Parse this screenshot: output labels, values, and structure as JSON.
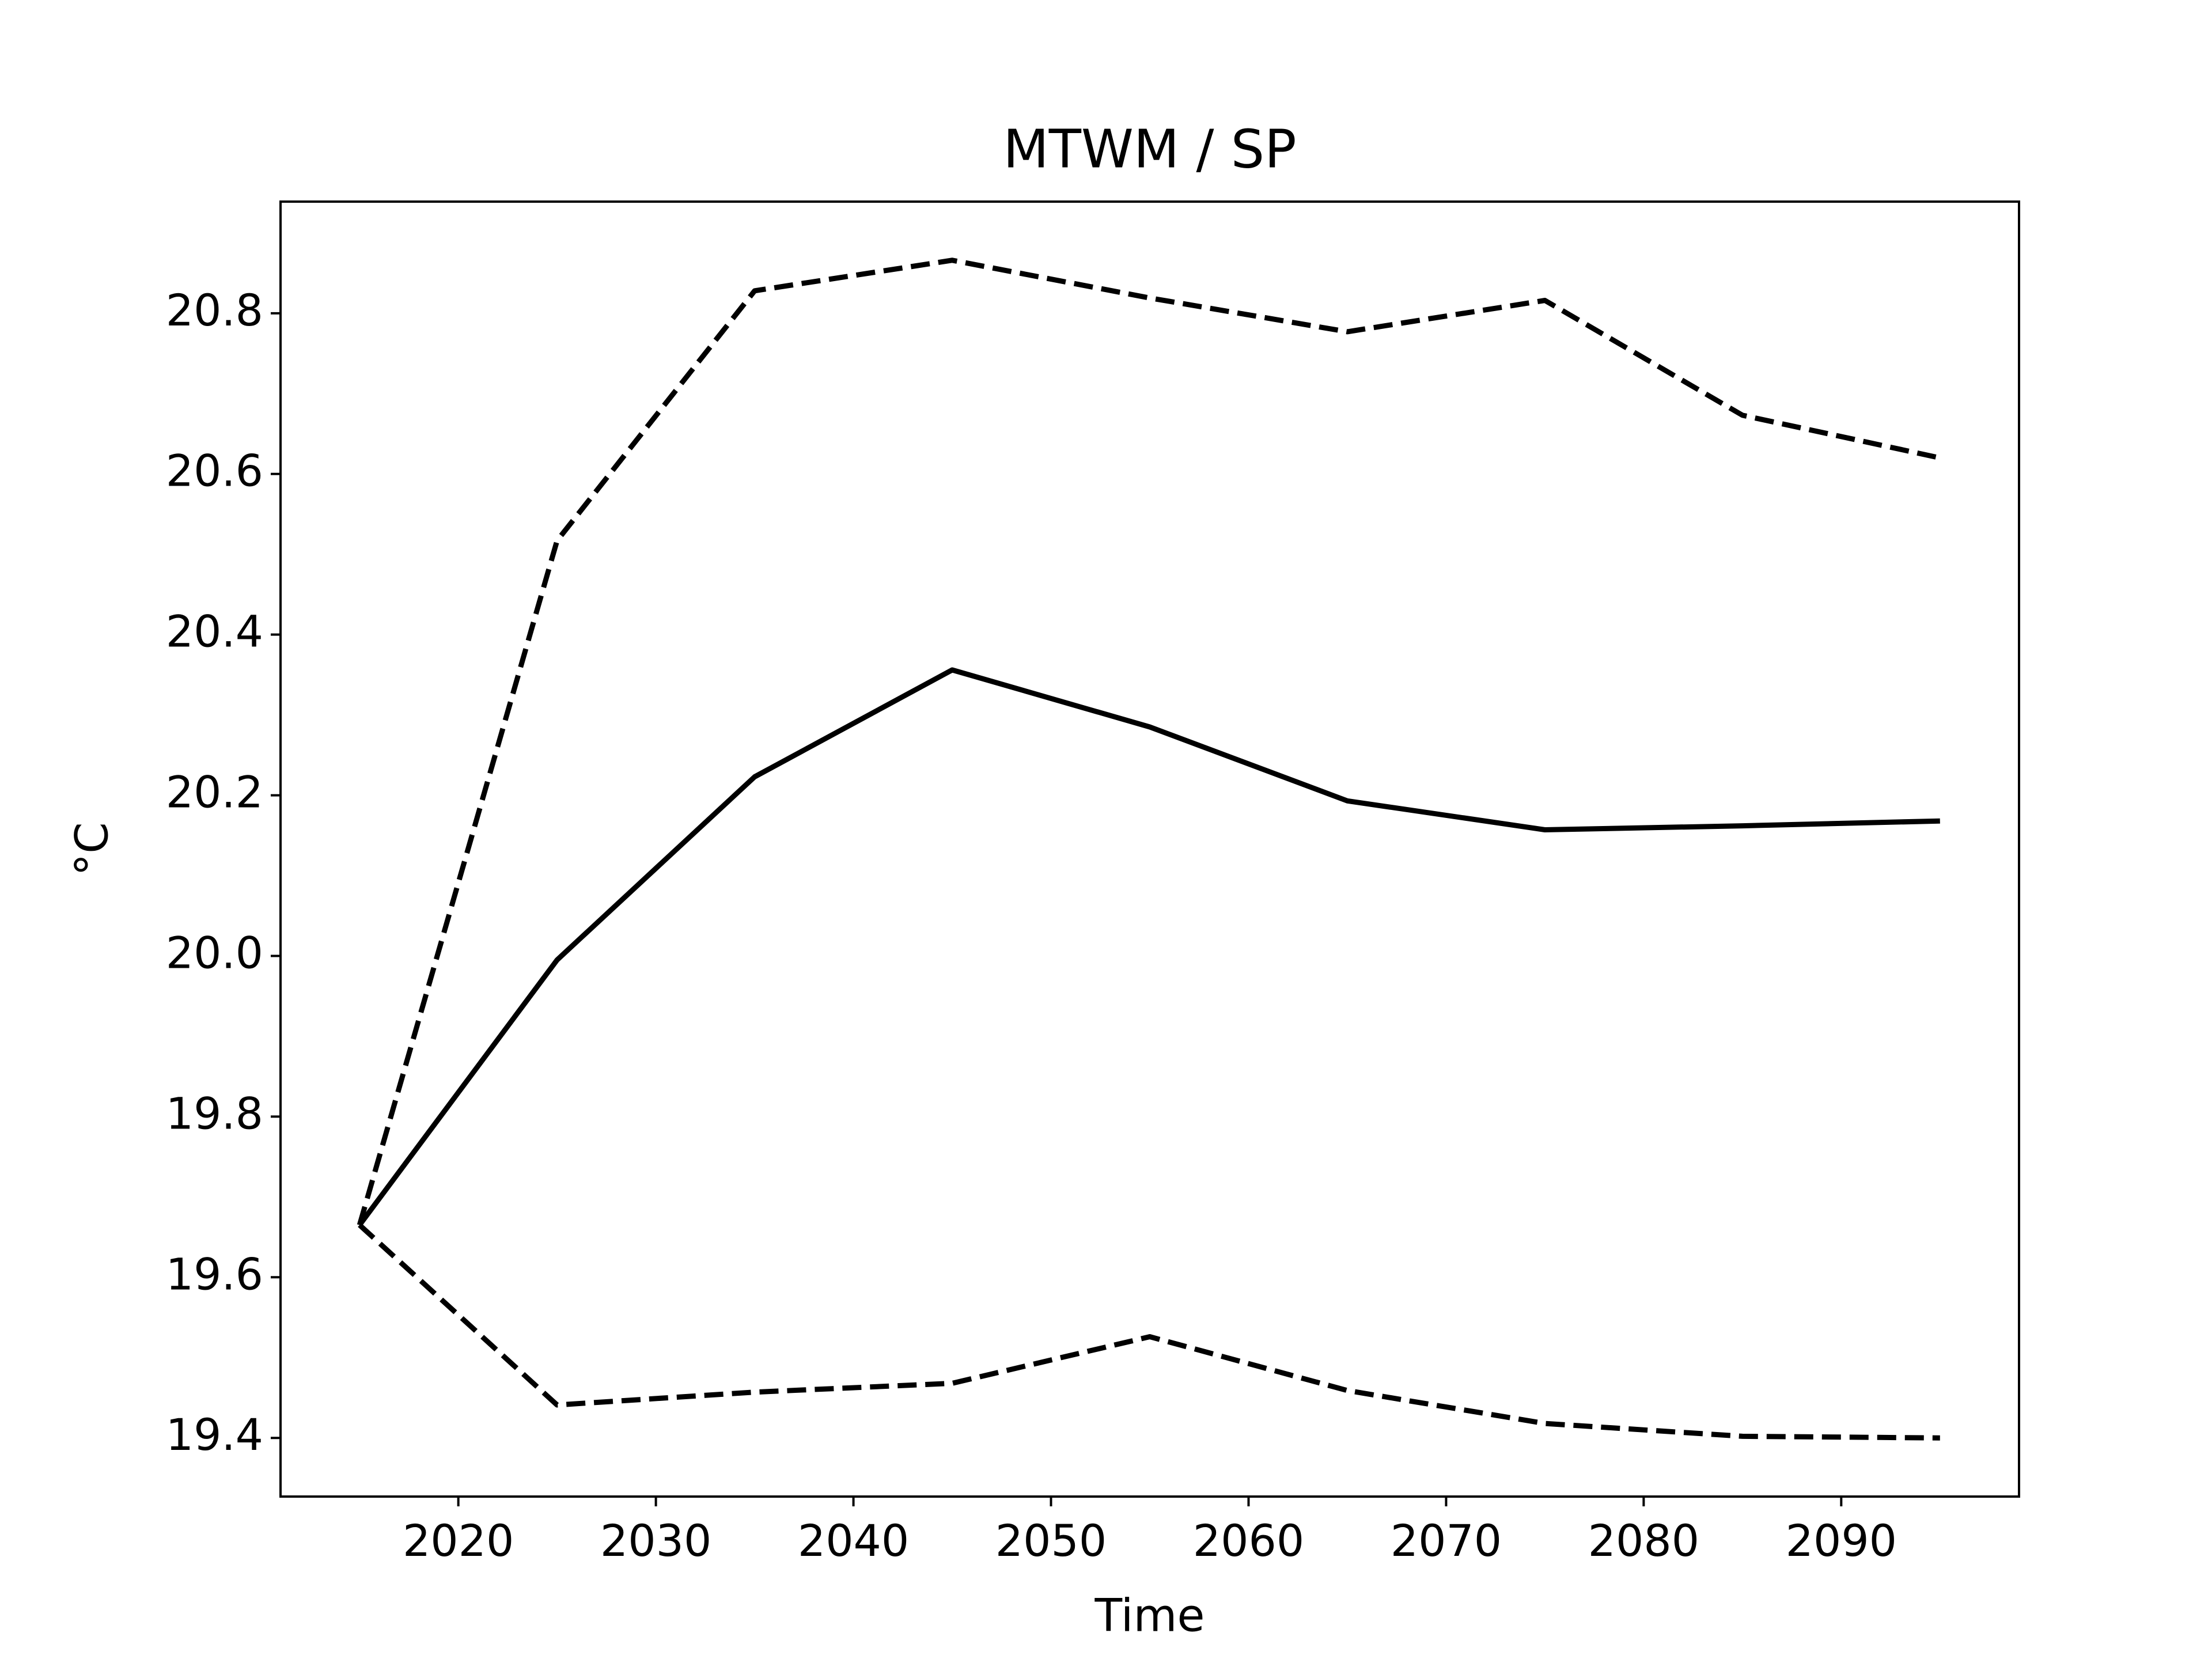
{
  "chart_data": {
    "type": "line",
    "title": "MTWM / SP",
    "x_label": "Time",
    "y_label": "°C",
    "x": [
      2015,
      2025,
      2035,
      2045,
      2055,
      2065,
      2075,
      2085,
      2095
    ],
    "series": [
      {
        "color": "#000000",
        "dash": true,
        "values": [
          19.665,
          20.517,
          20.828,
          20.866,
          20.819,
          20.777,
          20.816,
          20.673,
          20.62
        ]
      },
      {
        "color": "#000000",
        "dash": false,
        "values": [
          19.665,
          19.995,
          20.223,
          20.356,
          20.285,
          20.193,
          20.157,
          20.162,
          20.168
        ]
      },
      {
        "color": "#000000",
        "dash": true,
        "values": [
          19.665,
          19.441,
          19.457,
          19.468,
          19.526,
          19.459,
          19.418,
          19.402,
          19.4
        ]
      }
    ],
    "xlim": [
      2011,
      2099
    ],
    "ylim": [
      19.327,
      20.939
    ],
    "xticks": [
      2020,
      2030,
      2040,
      2050,
      2060,
      2070,
      2080,
      2090
    ],
    "yticks": [
      {
        "value": 19.4,
        "label": "19.4"
      },
      {
        "value": 19.6,
        "label": "19.6"
      },
      {
        "value": 19.8,
        "label": "19.8"
      },
      {
        "value": 20.0,
        "label": "20.0"
      },
      {
        "value": 20.2,
        "label": "20.2"
      },
      {
        "value": 20.4,
        "label": "20.4"
      },
      {
        "value": 20.6,
        "label": "20.6"
      },
      {
        "value": 20.8,
        "label": "20.8"
      }
    ],
    "grid": false
  }
}
